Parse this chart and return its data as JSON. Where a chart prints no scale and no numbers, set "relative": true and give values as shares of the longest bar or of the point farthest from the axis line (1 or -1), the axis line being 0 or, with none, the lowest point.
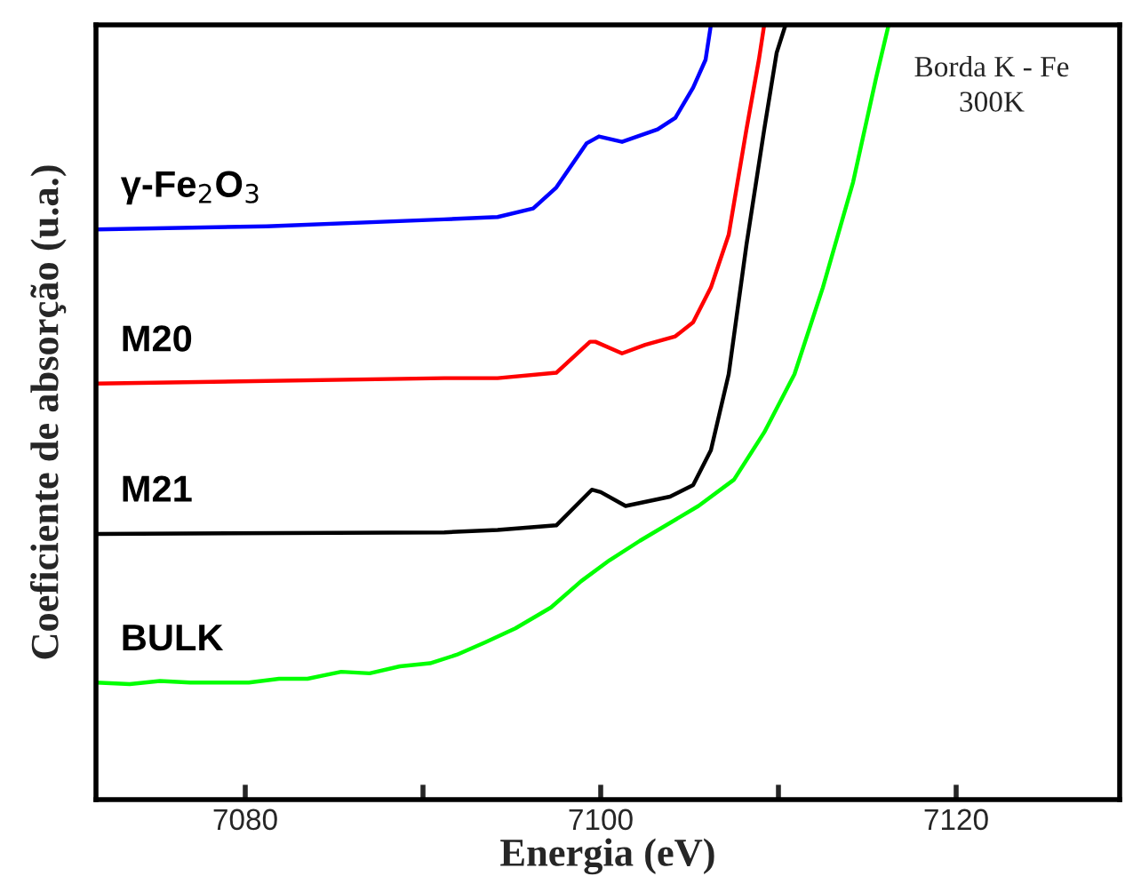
{
  "chart_data": {
    "type": "line",
    "xlabel": "Energia (eV)",
    "ylabel": "Coeficiente de absorção (u.a.)",
    "relative": true,
    "xlim": [
      7071.6,
      7129.2
    ],
    "xticks": [
      7080,
      {
        "value": 7090,
        "label": null
      },
      7100,
      {
        "value": 7110,
        "label": null
      },
      7120
    ],
    "grid": false,
    "legend": false,
    "marker": "none",
    "line_style": "solid",
    "annotations": [
      "Borda K - Fe\n300K"
    ],
    "series": [
      {
        "name": "γ-Fe$_{2}$O$_{3}$",
        "color": "#0000ff",
        "x": [
          7071.6,
          7081.2,
          7091.2,
          7094.2,
          7096.2,
          7097.5,
          7099.2,
          7099.9,
          7101.2,
          7103.2,
          7104.2,
          7105.2,
          7105.9,
          7106.2
        ],
        "values": [
          0.736,
          0.74,
          0.749,
          0.752,
          0.763,
          0.79,
          0.847,
          0.856,
          0.849,
          0.865,
          0.88,
          0.919,
          0.955,
          1.0
        ]
      },
      {
        "name": "M20",
        "color": "#ff0000",
        "x": [
          7071.6,
          7091.2,
          7094.2,
          7097.5,
          7099.4,
          7099.7,
          7101.2,
          7102.5,
          7104.2,
          7105.2,
          7106.2,
          7107.2,
          7108.2,
          7108.9,
          7109.2
        ],
        "values": [
          0.537,
          0.544,
          0.544,
          0.551,
          0.591,
          0.591,
          0.576,
          0.587,
          0.598,
          0.616,
          0.661,
          0.729,
          0.865,
          0.955,
          1.0
        ]
      },
      {
        "name": "M21",
        "color": "#000000",
        "x": [
          7071.6,
          7091.2,
          7094.2,
          7097.5,
          7099.5,
          7100.0,
          7101.4,
          7103.9,
          7105.2,
          7106.2,
          7107.2,
          7108.2,
          7109.2,
          7109.9,
          7110.4
        ],
        "values": [
          0.343,
          0.345,
          0.348,
          0.354,
          0.4,
          0.397,
          0.379,
          0.391,
          0.406,
          0.451,
          0.549,
          0.716,
          0.865,
          0.964,
          1.0
        ]
      },
      {
        "name": "BULK",
        "color": "#00ff00",
        "x": [
          7071.6,
          7073.5,
          7075.2,
          7076.9,
          7080.2,
          7081.9,
          7083.5,
          7085.4,
          7087.0,
          7088.7,
          7090.4,
          7091.9,
          7093.5,
          7095.2,
          7097.2,
          7098.9,
          7100.5,
          7102.2,
          7105.5,
          7107.5,
          7109.2,
          7110.9,
          7112.5,
          7114.2,
          7115.5,
          7116.2
        ],
        "values": [
          0.151,
          0.149,
          0.153,
          0.151,
          0.151,
          0.156,
          0.156,
          0.165,
          0.163,
          0.172,
          0.176,
          0.187,
          0.203,
          0.221,
          0.248,
          0.282,
          0.309,
          0.334,
          0.379,
          0.413,
          0.474,
          0.549,
          0.661,
          0.797,
          0.932,
          1.0
        ]
      }
    ]
  }
}
